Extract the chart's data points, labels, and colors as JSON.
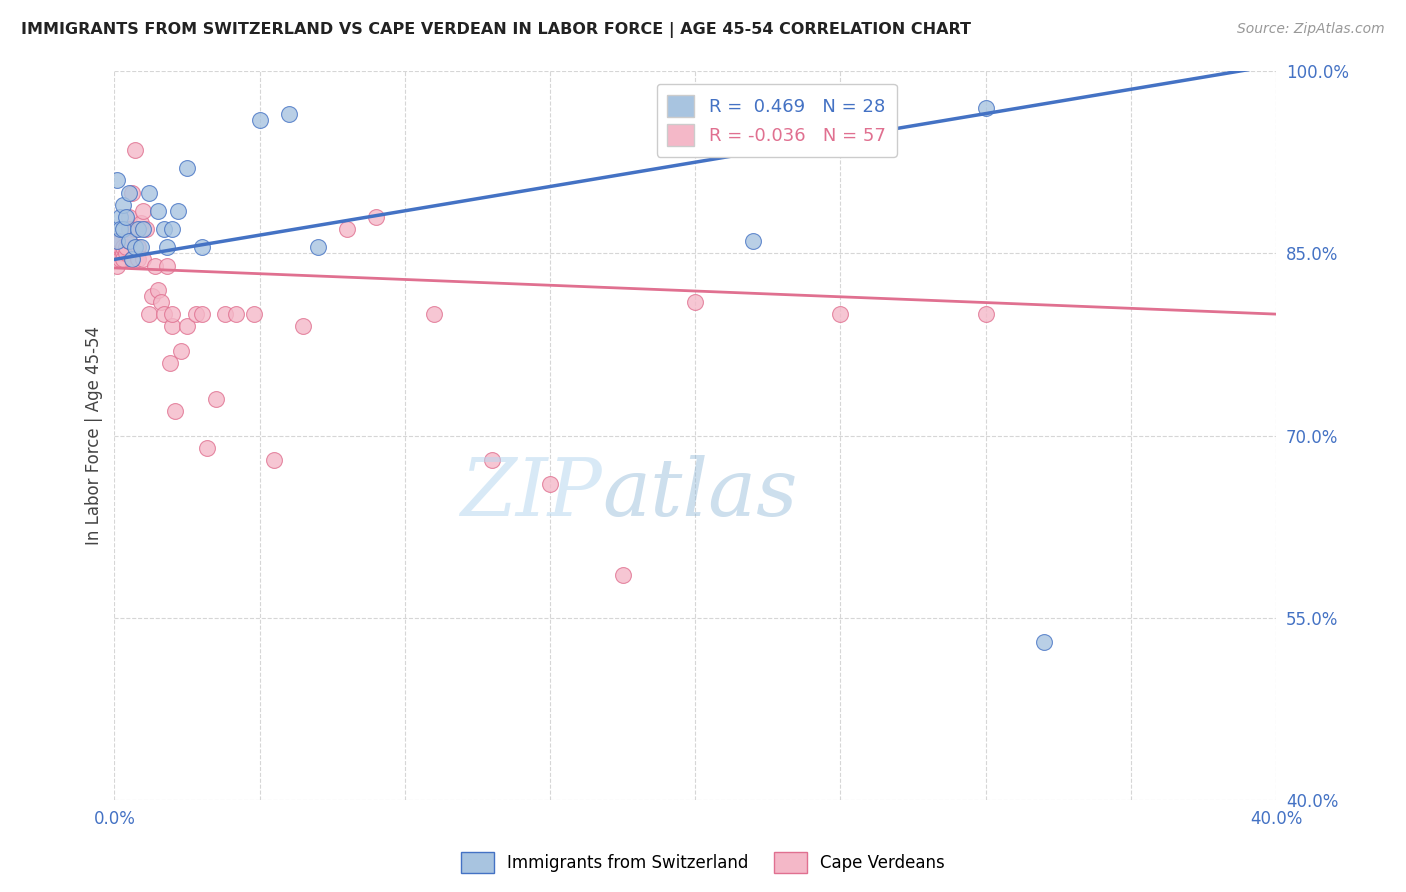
{
  "title": "IMMIGRANTS FROM SWITZERLAND VS CAPE VERDEAN IN LABOR FORCE | AGE 45-54 CORRELATION CHART",
  "source": "Source: ZipAtlas.com",
  "ylabel": "In Labor Force | Age 45-54",
  "r_swiss": 0.469,
  "n_swiss": 28,
  "r_cape": -0.036,
  "n_cape": 57,
  "xmin": 0.0,
  "xmax": 0.4,
  "ymin": 0.4,
  "ymax": 1.0,
  "xticks": [
    0.0,
    0.05,
    0.1,
    0.15,
    0.2,
    0.25,
    0.3,
    0.35,
    0.4
  ],
  "yticks": [
    0.4,
    0.55,
    0.7,
    0.85,
    1.0
  ],
  "ytick_labels": [
    "40.0%",
    "55.0%",
    "70.0%",
    "85.0%",
    "100.0%"
  ],
  "color_swiss": "#a8c4e0",
  "color_cape": "#f4b8c8",
  "line_swiss": "#4472c4",
  "line_cape": "#e07090",
  "background": "#ffffff",
  "swiss_x": [
    0.001,
    0.001,
    0.002,
    0.002,
    0.003,
    0.003,
    0.004,
    0.005,
    0.005,
    0.006,
    0.007,
    0.008,
    0.009,
    0.01,
    0.012,
    0.015,
    0.017,
    0.018,
    0.02,
    0.022,
    0.025,
    0.03,
    0.05,
    0.06,
    0.07,
    0.22,
    0.3,
    0.32
  ],
  "swiss_y": [
    0.91,
    0.86,
    0.88,
    0.87,
    0.89,
    0.87,
    0.88,
    0.9,
    0.86,
    0.845,
    0.855,
    0.87,
    0.855,
    0.87,
    0.9,
    0.885,
    0.87,
    0.855,
    0.87,
    0.885,
    0.92,
    0.855,
    0.96,
    0.965,
    0.855,
    0.86,
    0.97,
    0.53
  ],
  "cape_x": [
    0.001,
    0.001,
    0.001,
    0.001,
    0.001,
    0.002,
    0.002,
    0.002,
    0.003,
    0.003,
    0.003,
    0.004,
    0.004,
    0.005,
    0.005,
    0.005,
    0.006,
    0.006,
    0.007,
    0.007,
    0.008,
    0.008,
    0.009,
    0.01,
    0.01,
    0.011,
    0.012,
    0.013,
    0.014,
    0.015,
    0.016,
    0.017,
    0.018,
    0.019,
    0.02,
    0.02,
    0.021,
    0.023,
    0.025,
    0.028,
    0.03,
    0.032,
    0.035,
    0.038,
    0.042,
    0.048,
    0.055,
    0.065,
    0.08,
    0.09,
    0.11,
    0.13,
    0.15,
    0.175,
    0.2,
    0.25,
    0.3
  ],
  "cape_y": [
    0.86,
    0.85,
    0.84,
    0.85,
    0.86,
    0.855,
    0.845,
    0.86,
    0.85,
    0.845,
    0.855,
    0.85,
    0.855,
    0.88,
    0.87,
    0.86,
    0.9,
    0.845,
    0.935,
    0.87,
    0.855,
    0.845,
    0.875,
    0.885,
    0.845,
    0.87,
    0.8,
    0.815,
    0.84,
    0.82,
    0.81,
    0.8,
    0.84,
    0.76,
    0.79,
    0.8,
    0.72,
    0.77,
    0.79,
    0.8,
    0.8,
    0.69,
    0.73,
    0.8,
    0.8,
    0.8,
    0.68,
    0.79,
    0.87,
    0.88,
    0.8,
    0.68,
    0.66,
    0.585,
    0.81,
    0.8,
    0.8
  ],
  "swiss_line_x0": 0.0,
  "swiss_line_x1": 0.4,
  "swiss_line_y0": 0.845,
  "swiss_line_y1": 1.005,
  "cape_line_x0": 0.0,
  "cape_line_x1": 0.4,
  "cape_line_y0": 0.838,
  "cape_line_y1": 0.8,
  "watermark_zip": "ZIP",
  "watermark_atlas": "atlas"
}
